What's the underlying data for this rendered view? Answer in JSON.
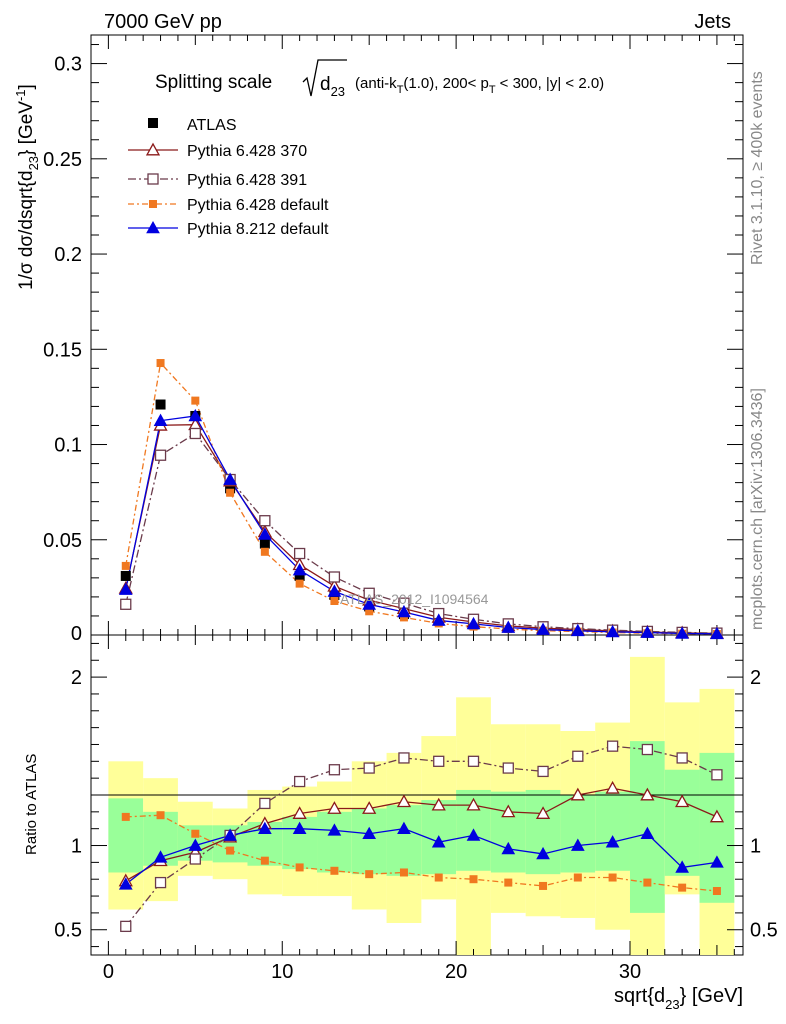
{
  "header": {
    "left": "7000 GeV pp",
    "right": "Jets"
  },
  "side": {
    "rivet": "Rivet 3.1.10, ≥ 400k events",
    "source": "mcplots.cern.ch [arXiv:1306.3436]"
  },
  "watermark": "ATLAS_2012_I1094564",
  "chart_data": {
    "type": "line",
    "title": "Splitting scale √d₂₃ (anti-k_T(1.0), 200< p_T < 300, |y| < 2.0)",
    "title_parts": {
      "a": "Splitting scale",
      "b": "d",
      "c": "23",
      "d": "(anti-k",
      "e": "T",
      "f": "(1.0), 200< p",
      "g": "T",
      "h": "< 300, |y| < 2.0)"
    },
    "xlabel": "sqrt{d",
    "xlabel_sub": "23",
    "xlabel_end": "} [GeV]",
    "ylabel": "1/σ dσ/dsqrt{d",
    "ylabel_sub": "23",
    "ylabel_end": "} [GeV",
    "ylabel_sup": "-1",
    "ylabel_close": "]",
    "ratio_ylabel": "Ratio to ATLAS",
    "xlim": [
      -1,
      36.5
    ],
    "ylim": [
      0,
      0.315
    ],
    "ratio_ylim": [
      0.35,
      2.25
    ],
    "x_ticks": [
      0,
      10,
      20,
      30
    ],
    "x_tick_labels": [
      "0",
      "10",
      "20",
      "30"
    ],
    "y_ticks": [
      0.05,
      0.1,
      0.15,
      0.2,
      0.25,
      0.3
    ],
    "y_tick_labels": [
      "0.05",
      "0.1",
      "0.15",
      "0.2",
      "0.25",
      "0.3"
    ],
    "y_zero_label": "0",
    "ratio_ticks": [
      0.5,
      1,
      2
    ],
    "ratio_tick_labels": [
      "0.5",
      "1",
      "2"
    ],
    "x": [
      1,
      3,
      5,
      7,
      9,
      11,
      13,
      15,
      17,
      19,
      21,
      23,
      25,
      27,
      29,
      31,
      33,
      35
    ],
    "data": {
      "name": "ATLAS",
      "values": [
        0.031,
        0.121,
        0.115,
        0.077,
        0.048,
        0.031,
        0.021,
        0.015,
        0.011,
        0.0075,
        0.0055,
        0.004,
        0.003,
        0.0022,
        0.0016,
        0.0012,
        0.0009,
        0.0007
      ]
    },
    "series": [
      {
        "name": "Pythia 6.428 370",
        "color": "#8b1a1a",
        "marker": "open-triangle",
        "dash": "",
        "ratio": [
          0.79,
          0.91,
          0.96,
          1.05,
          1.13,
          1.19,
          1.22,
          1.22,
          1.26,
          1.24,
          1.24,
          1.2,
          1.19,
          1.3,
          1.34,
          1.3,
          1.26,
          1.17
        ]
      },
      {
        "name": "Pythia 6.428 391",
        "color": "#6b3b4b",
        "marker": "open-square",
        "dash": "8,3,2,3",
        "ratio": [
          0.52,
          0.78,
          0.92,
          1.06,
          1.25,
          1.38,
          1.45,
          1.46,
          1.52,
          1.5,
          1.5,
          1.46,
          1.44,
          1.53,
          1.59,
          1.57,
          1.52,
          1.42
        ]
      },
      {
        "name": "Pythia 6.428 default",
        "color": "#f07820",
        "marker": "filled-square",
        "dash": "6,3,2,3",
        "ratio": [
          1.17,
          1.18,
          1.07,
          0.97,
          0.91,
          0.87,
          0.85,
          0.83,
          0.84,
          0.81,
          0.8,
          0.78,
          0.76,
          0.81,
          0.81,
          0.78,
          0.75,
          0.73
        ]
      },
      {
        "name": "Pythia 8.212 default",
        "color": "#0000e0",
        "marker": "filled-triangle",
        "dash": "",
        "ratio": [
          0.77,
          0.93,
          1.0,
          1.06,
          1.1,
          1.1,
          1.09,
          1.07,
          1.1,
          1.02,
          1.06,
          0.98,
          0.95,
          1.0,
          1.02,
          1.07,
          0.87,
          0.9
        ]
      }
    ],
    "band_green": {
      "low": [
        0.84,
        0.88,
        0.91,
        0.9,
        0.88,
        0.86,
        0.84,
        0.83,
        0.82,
        0.83,
        0.85,
        0.84,
        0.83,
        0.84,
        0.85,
        0.6,
        0.82,
        0.66
      ],
      "high": [
        1.28,
        1.2,
        1.12,
        1.12,
        1.14,
        1.17,
        1.2,
        1.22,
        1.24,
        1.27,
        1.33,
        1.32,
        1.33,
        1.3,
        1.32,
        1.62,
        1.45,
        1.55
      ]
    },
    "band_yellow": {
      "low": [
        0.62,
        0.67,
        0.82,
        0.8,
        0.71,
        0.7,
        0.7,
        0.62,
        0.54,
        0.68,
        0.35,
        0.6,
        0.58,
        0.57,
        0.5,
        0.35,
        0.71,
        0.35
      ],
      "high": [
        1.5,
        1.4,
        1.26,
        1.22,
        1.33,
        1.35,
        1.38,
        1.5,
        1.55,
        1.65,
        1.88,
        1.72,
        1.72,
        1.68,
        1.73,
        2.12,
        1.85,
        1.93
      ]
    }
  }
}
